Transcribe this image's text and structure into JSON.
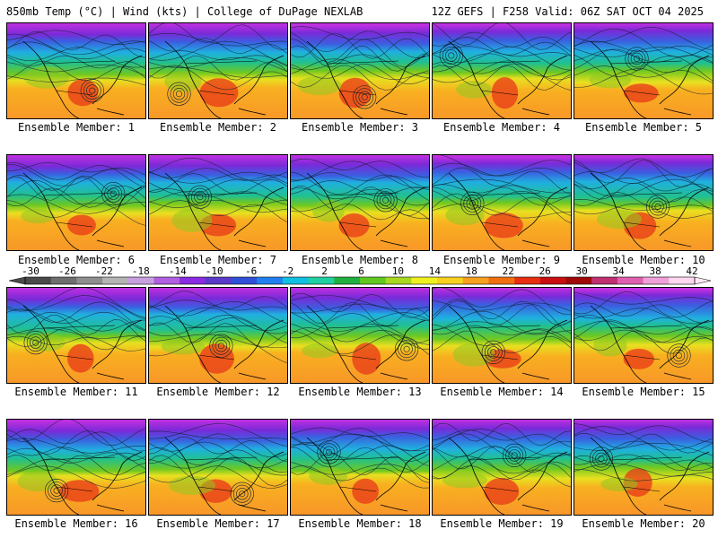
{
  "header": {
    "left": "850mb Temp (°C) | Wind (kts) | College of DuPage NEXLAB",
    "right": "12Z GEFS | F258 Valid: 06Z SAT OCT 04 2025"
  },
  "colorbar": {
    "ticks": [
      "-30",
      "-26",
      "-22",
      "-18",
      "-14",
      "-10",
      "-6",
      "-2",
      "2",
      "6",
      "10",
      "14",
      "18",
      "22",
      "26",
      "30",
      "34",
      "38",
      "42"
    ],
    "colors": [
      "#4a4a4a",
      "#6e6e6e",
      "#8e8e8e",
      "#b4b4b4",
      "#c8a0e0",
      "#b060e0",
      "#8a2be2",
      "#5a3ac8",
      "#3050d8",
      "#2080f0",
      "#10c0e0",
      "#20d0a0",
      "#20b040",
      "#60c820",
      "#a8d820",
      "#f0f020",
      "#f8d020",
      "#f8a020",
      "#f07010",
      "#e83010",
      "#c81010",
      "#a00808",
      "#c03070",
      "#e060b0",
      "#f0a0d8",
      "#ffd8f0"
    ]
  },
  "members": [
    {
      "label": "Ensemble Member: 1"
    },
    {
      "label": "Ensemble Member: 2"
    },
    {
      "label": "Ensemble Member: 3"
    },
    {
      "label": "Ensemble Member: 4"
    },
    {
      "label": "Ensemble Member: 5"
    },
    {
      "label": "Ensemble Member: 6"
    },
    {
      "label": "Ensemble Member: 7"
    },
    {
      "label": "Ensemble Member: 8"
    },
    {
      "label": "Ensemble Member: 9"
    },
    {
      "label": "Ensemble Member: 10"
    },
    {
      "label": "Ensemble Member: 11"
    },
    {
      "label": "Ensemble Member: 12"
    },
    {
      "label": "Ensemble Member: 13"
    },
    {
      "label": "Ensemble Member: 14"
    },
    {
      "label": "Ensemble Member: 15"
    },
    {
      "label": "Ensemble Member: 16"
    },
    {
      "label": "Ensemble Member: 17"
    },
    {
      "label": "Ensemble Member: 18"
    },
    {
      "label": "Ensemble Member: 19"
    },
    {
      "label": "Ensemble Member: 20"
    }
  ]
}
